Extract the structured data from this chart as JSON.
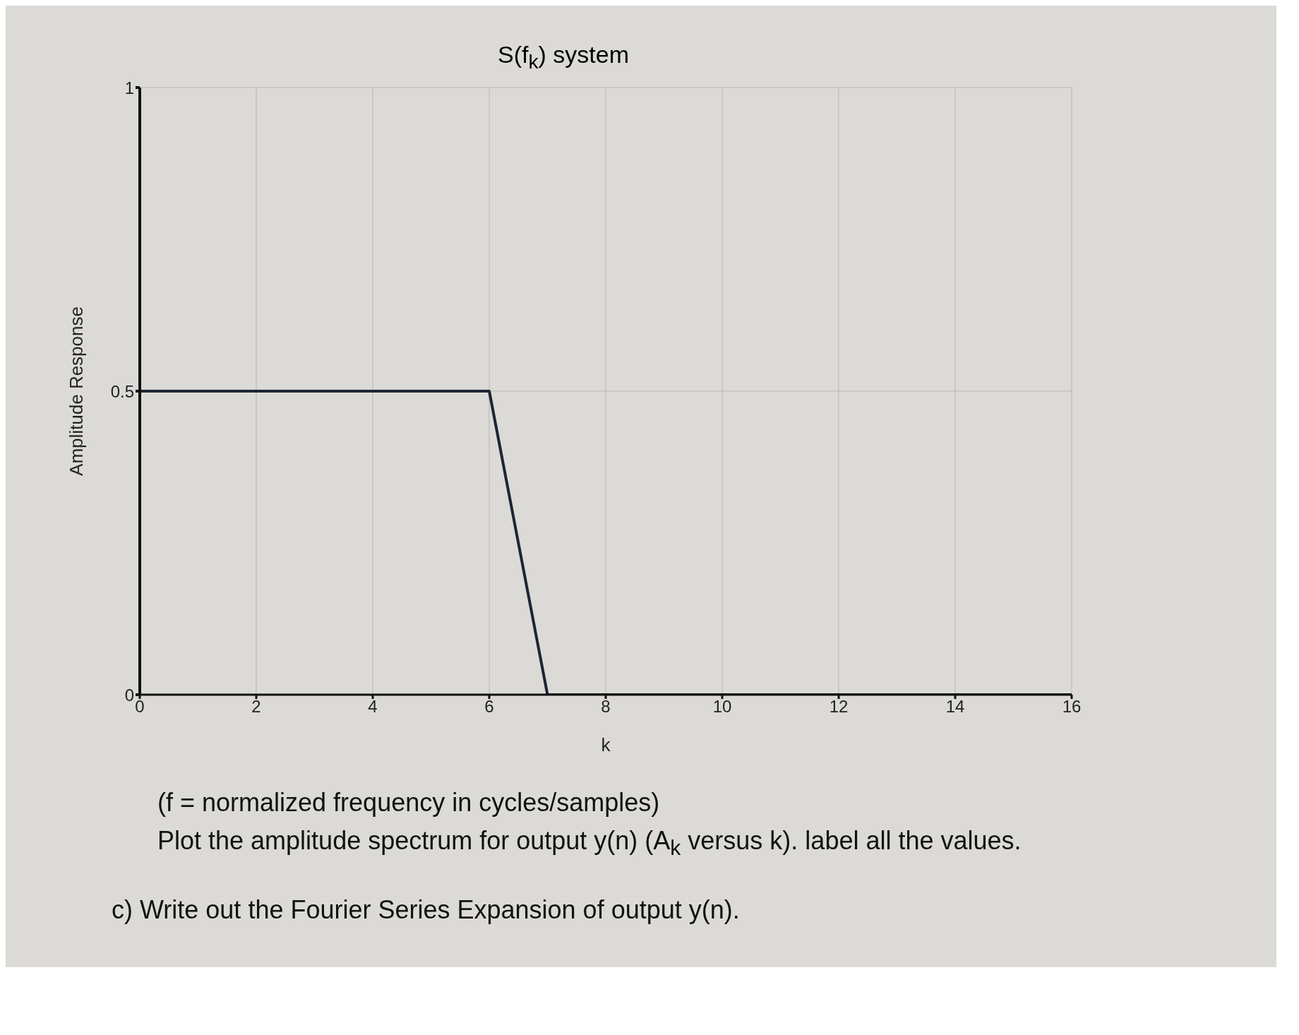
{
  "chart_data": {
    "type": "line",
    "title": "S(f$_{k}$) system",
    "xlabel": "k",
    "ylabel": "Amplitude Response",
    "x": [
      0,
      0,
      6,
      7,
      16
    ],
    "series": [
      {
        "color": "#1c2633",
        "values": [
          0,
          0.5,
          0.5,
          0,
          0
        ]
      }
    ],
    "xlim": [
      0,
      16
    ],
    "xticks": [
      0,
      2,
      4,
      6,
      8,
      10,
      12,
      14,
      16
    ],
    "ylim": [
      0,
      1
    ],
    "yticks": [
      0,
      0.5,
      1
    ],
    "grid": true,
    "marker": "none",
    "line_style": "solid",
    "annotations": [
      "(f = normalized frequency in cycles/samples)",
      "Plot the amplitude spectrum for output y(n)  (A$_{k}$ versus k).  label all the values.",
      "c)  Write out the Fourier Series Expansion of output y(n)."
    ]
  }
}
